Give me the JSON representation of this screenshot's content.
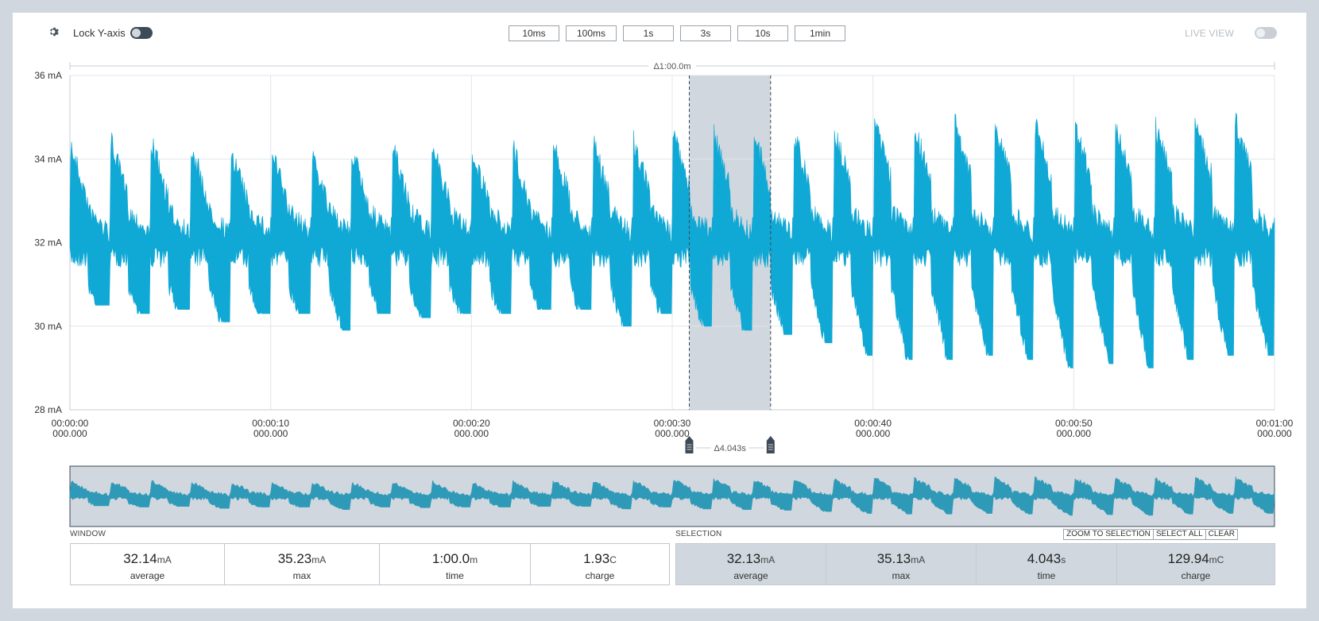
{
  "toolbar": {
    "lock_label": "Lock Y-axis",
    "lock_enabled": false,
    "zoom_buttons": [
      "10ms",
      "100ms",
      "1s",
      "3s",
      "10s",
      "1min"
    ],
    "live_label": "LIVE VIEW",
    "live_enabled": false
  },
  "chart": {
    "window_delta_label": "Δ1:00.0m",
    "selection_delta_label": "Δ4.043s",
    "series_color": "#10a8d4",
    "selection_color": "#d0d7de",
    "minimap_color": "#2f9ab8"
  },
  "chart_data": {
    "type": "line",
    "title": "",
    "ylabel": "",
    "xlabel": "",
    "ylim": [
      28,
      36
    ],
    "yunit": "mA",
    "y_ticks": [
      "36 mA",
      "34 mA",
      "32 mA",
      "30 mA",
      "28 mA"
    ],
    "x_range_seconds": [
      0,
      60
    ],
    "x_ticks": [
      {
        "time": "00:00:00",
        "sub": "000.000"
      },
      {
        "time": "00:00:10",
        "sub": "000.000"
      },
      {
        "time": "00:00:20",
        "sub": "000.000"
      },
      {
        "time": "00:00:30",
        "sub": "000.000"
      },
      {
        "time": "00:00:40",
        "sub": "000.000"
      },
      {
        "time": "00:00:50",
        "sub": "000.000"
      },
      {
        "time": "00:01:00",
        "sub": "000.000"
      }
    ],
    "selection_seconds": [
      30.85,
      34.9
    ],
    "grid": true,
    "series": [
      {
        "values_description_period_seconds": 2.0,
        "baseline_mA": 32.0,
        "peak_mA": [
          34.6,
          34.7,
          34.7,
          34.6,
          34.5,
          34.5,
          34.5,
          34.5,
          34.6,
          34.6,
          34.5,
          34.6,
          34.7,
          34.7,
          34.8,
          34.9,
          35.0,
          34.9,
          34.9,
          35.0,
          35.2,
          35.1,
          35.2,
          35.2,
          35.2,
          35.1,
          35.1,
          35.1,
          35.2,
          35.2
        ],
        "trough_mA": [
          30.5,
          30.3,
          30.4,
          30.1,
          30.3,
          30.3,
          29.9,
          30.3,
          30.2,
          30.3,
          30.3,
          30.4,
          30.4,
          30.0,
          30.3,
          30.0,
          29.9,
          29.8,
          29.6,
          29.3,
          29.2,
          29.2,
          29.3,
          29.2,
          29.0,
          29.1,
          29.0,
          29.2,
          29.3,
          29.3
        ]
      }
    ]
  },
  "window": {
    "heading": "WINDOW",
    "stats": [
      {
        "value": "32.14",
        "unit": "mA",
        "label": "average"
      },
      {
        "value": "35.23",
        "unit": "mA",
        "label": "max"
      },
      {
        "value": "1:00.0",
        "unit": "m",
        "label": "time"
      },
      {
        "value": "1.93",
        "unit": "C",
        "label": "charge"
      }
    ]
  },
  "selection": {
    "heading": "SELECTION",
    "buttons": [
      "ZOOM TO SELECTION",
      "SELECT ALL",
      "CLEAR"
    ],
    "stats": [
      {
        "value": "32.13",
        "unit": "mA",
        "label": "average"
      },
      {
        "value": "35.13",
        "unit": "mA",
        "label": "max"
      },
      {
        "value": "4.043",
        "unit": "s",
        "label": "time"
      },
      {
        "value": "129.94",
        "unit": "mC",
        "label": "charge"
      }
    ]
  }
}
